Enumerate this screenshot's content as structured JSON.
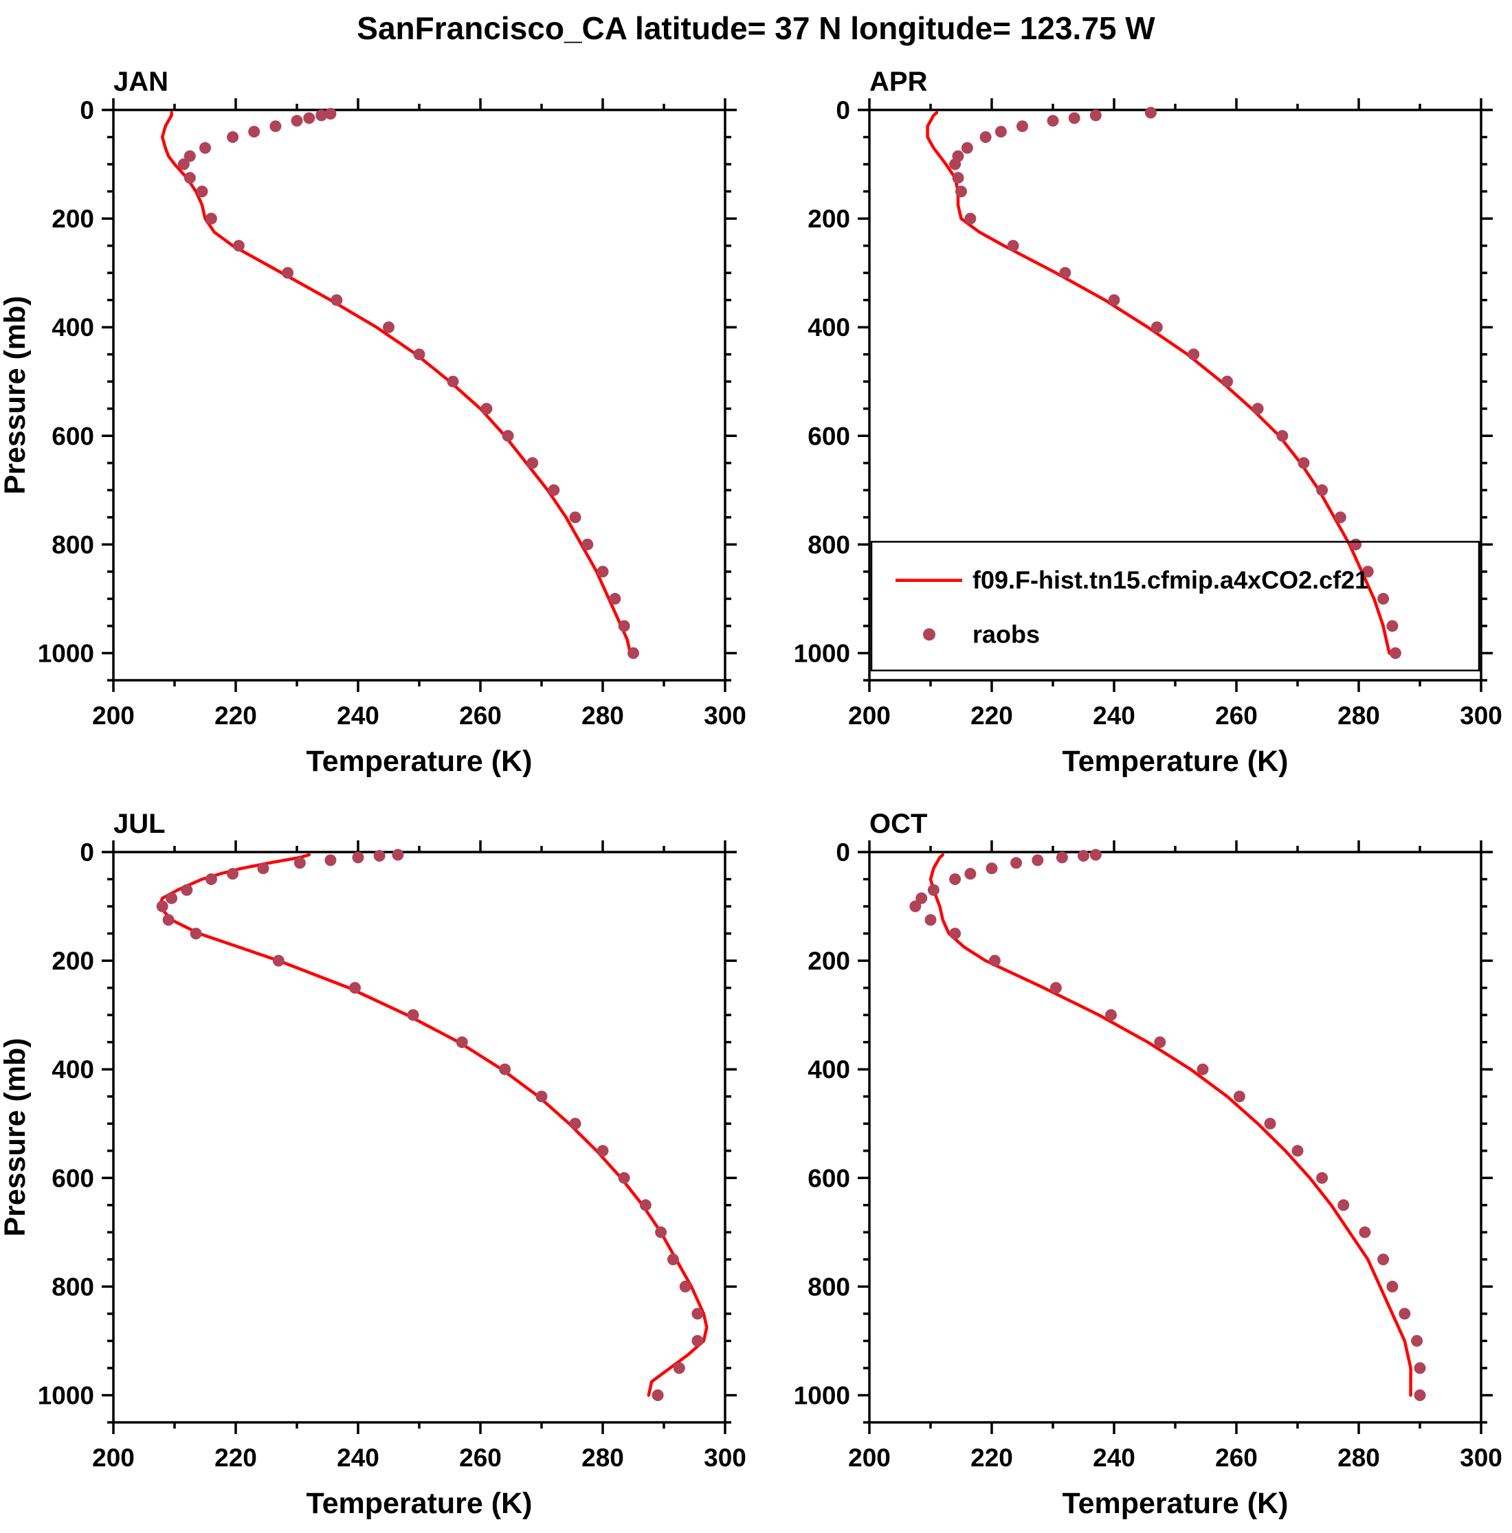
{
  "title": "SanFrancisco_CA  latitude= 37 N longitude= 123.75 W",
  "axes": {
    "xlabel": "Temperature (K)",
    "ylabel": "Pressure (mb)",
    "xlim": [
      200,
      300
    ],
    "ylim": [
      0,
      1050
    ],
    "x_ticks": [
      200,
      220,
      240,
      260,
      280,
      300
    ],
    "y_ticks": [
      0,
      200,
      400,
      600,
      800,
      1000
    ],
    "x_minor_step": 10,
    "y_minor_step": 50
  },
  "legend": {
    "model_label": "f09.F-hist.tn15.cfmip.a4xCO2.cf21",
    "obs_label": "raobs",
    "panel": "APR"
  },
  "colors": {
    "model_line": "#ff0000",
    "obs_dot": "#b04357",
    "axis": "#000000",
    "background": "#ffffff"
  },
  "chart_data": [
    {
      "type": "line",
      "title": "JAN",
      "show_legend": false,
      "show_ylabel": true,
      "series": [
        {
          "name": "f09.F-hist.tn15.cfmip.a4xCO2.cf21",
          "style": "line",
          "pressure_mb": [
            5,
            10,
            20,
            30,
            50,
            70,
            85,
            100,
            125,
            150,
            175,
            200,
            225,
            250,
            300,
            350,
            400,
            450,
            500,
            550,
            600,
            650,
            700,
            750,
            800,
            850,
            900,
            925,
            950,
            975,
            1000
          ],
          "temperature_k": [
            209.5,
            209.5,
            209,
            208.5,
            208,
            208.5,
            209,
            210,
            212,
            213.5,
            214.5,
            215,
            216.5,
            219.5,
            227.5,
            235.5,
            243,
            249.5,
            255,
            260,
            264,
            267.5,
            271,
            274,
            276.5,
            279,
            281,
            282,
            283,
            284,
            284.5
          ]
        },
        {
          "name": "raobs",
          "style": "dots",
          "pressure_mb": [
            7,
            10,
            15,
            20,
            30,
            40,
            50,
            70,
            85,
            100,
            125,
            150,
            200,
            250,
            300,
            350,
            400,
            450,
            500,
            550,
            600,
            650,
            700,
            750,
            800,
            850,
            900,
            950,
            1000
          ],
          "temperature_k": [
            235.5,
            234,
            232,
            230,
            226.5,
            223,
            219.5,
            215,
            212.5,
            211.5,
            212.5,
            214.5,
            216,
            220.5,
            228.5,
            236.5,
            245,
            250,
            255.5,
            261,
            264.5,
            268.5,
            272,
            275.5,
            277.5,
            280,
            282,
            283.5,
            285
          ]
        }
      ]
    },
    {
      "type": "line",
      "title": "APR",
      "show_legend": true,
      "show_ylabel": false,
      "series": [
        {
          "name": "f09.F-hist.tn15.cfmip.a4xCO2.cf21",
          "style": "line",
          "pressure_mb": [
            5,
            10,
            20,
            30,
            50,
            70,
            85,
            100,
            125,
            150,
            175,
            200,
            225,
            250,
            300,
            350,
            400,
            450,
            500,
            550,
            600,
            650,
            700,
            750,
            800,
            850,
            900,
            950,
            975,
            1000
          ],
          "temperature_k": [
            211,
            210.5,
            210,
            209.5,
            209.5,
            210.5,
            211.5,
            212.5,
            214,
            214.5,
            214.5,
            215,
            218,
            222,
            230.5,
            238.5,
            245.5,
            252,
            257.5,
            262.5,
            267,
            270.5,
            273.5,
            276,
            278.5,
            280.5,
            282.5,
            284,
            284.5,
            285
          ]
        },
        {
          "name": "raobs",
          "style": "dots",
          "pressure_mb": [
            5,
            10,
            15,
            20,
            30,
            40,
            50,
            70,
            85,
            100,
            125,
            150,
            200,
            250,
            300,
            350,
            400,
            450,
            500,
            550,
            600,
            650,
            700,
            750,
            800,
            850,
            900,
            950,
            1000
          ],
          "temperature_k": [
            246,
            237,
            233.5,
            230,
            225,
            221.5,
            219,
            216,
            214.5,
            214,
            214.5,
            215,
            216.5,
            223.5,
            232,
            240,
            247,
            253,
            258.5,
            263.5,
            267.5,
            271,
            274,
            277,
            279.5,
            281.5,
            284,
            285.5,
            286
          ]
        }
      ]
    },
    {
      "type": "line",
      "title": "JUL",
      "show_legend": false,
      "show_ylabel": true,
      "series": [
        {
          "name": "f09.F-hist.tn15.cfmip.a4xCO2.cf21",
          "style": "line",
          "pressure_mb": [
            5,
            10,
            20,
            30,
            40,
            50,
            70,
            85,
            100,
            125,
            150,
            175,
            200,
            250,
            300,
            350,
            400,
            450,
            500,
            550,
            600,
            650,
            700,
            750,
            800,
            850,
            875,
            900,
            925,
            950,
            975,
            1000
          ],
          "temperature_k": [
            232,
            230.5,
            225.5,
            221,
            217.5,
            214.5,
            210.5,
            208,
            207.5,
            209.5,
            214,
            220.5,
            227,
            238.5,
            248,
            256.5,
            263.5,
            269.5,
            274.5,
            279,
            283,
            286.5,
            289.5,
            292,
            294.5,
            296.5,
            297,
            296.5,
            294,
            291,
            288,
            287.5
          ]
        },
        {
          "name": "raobs",
          "style": "dots",
          "pressure_mb": [
            5,
            7,
            10,
            15,
            20,
            30,
            40,
            50,
            70,
            85,
            100,
            125,
            150,
            200,
            250,
            300,
            350,
            400,
            450,
            500,
            550,
            600,
            650,
            700,
            750,
            800,
            850,
            900,
            950,
            1000
          ],
          "temperature_k": [
            246.5,
            243.5,
            240,
            235.5,
            230.5,
            224.5,
            219.5,
            216,
            212,
            209.5,
            208,
            209,
            213.5,
            227,
            239.5,
            249,
            257,
            264,
            270,
            275.5,
            280,
            283.5,
            287,
            289.5,
            291.5,
            293.5,
            295.5,
            295.5,
            292.5,
            289
          ]
        }
      ]
    },
    {
      "type": "line",
      "title": "OCT",
      "show_legend": false,
      "show_ylabel": false,
      "series": [
        {
          "name": "f09.F-hist.tn15.cfmip.a4xCO2.cf21",
          "style": "line",
          "pressure_mb": [
            5,
            10,
            20,
            30,
            50,
            70,
            85,
            100,
            125,
            150,
            175,
            200,
            250,
            300,
            350,
            400,
            450,
            500,
            550,
            600,
            650,
            700,
            750,
            800,
            850,
            900,
            925,
            950,
            975,
            1000
          ],
          "temperature_k": [
            212,
            211.5,
            211,
            210.5,
            210,
            210.5,
            211,
            211.5,
            212,
            213,
            215.5,
            219,
            228.5,
            237.5,
            245.5,
            252.5,
            258.5,
            263.5,
            268,
            272,
            275.5,
            278.5,
            281.5,
            283.5,
            285.5,
            287.5,
            288,
            288.5,
            288.5,
            288.5
          ]
        },
        {
          "name": "raobs",
          "style": "dots",
          "pressure_mb": [
            5,
            7,
            10,
            15,
            20,
            30,
            40,
            50,
            70,
            85,
            100,
            125,
            150,
            200,
            250,
            300,
            350,
            400,
            450,
            500,
            550,
            600,
            650,
            700,
            750,
            800,
            850,
            900,
            950,
            1000
          ],
          "temperature_k": [
            237,
            235,
            231.5,
            227.5,
            224,
            220,
            216.5,
            214,
            210.5,
            208.5,
            207.5,
            210,
            214,
            220.5,
            230.5,
            239.5,
            247.5,
            254.5,
            260.5,
            265.5,
            270,
            274,
            277.5,
            281,
            284,
            285.5,
            287.5,
            289.5,
            290,
            290
          ]
        }
      ]
    }
  ]
}
